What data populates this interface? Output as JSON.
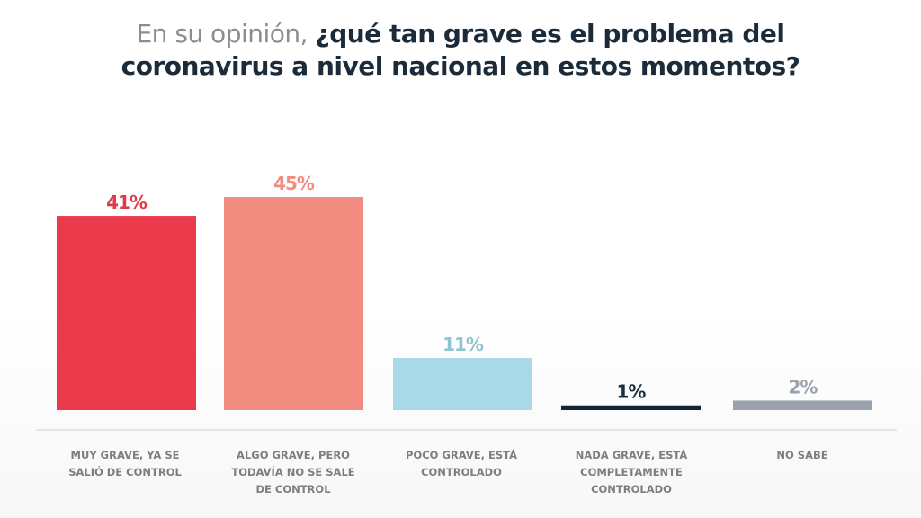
{
  "chart_data": {
    "type": "bar",
    "title": {
      "prefix": "En su opinión,",
      "emphasis_line1": "¿qué tan grave es el problema del",
      "emphasis_line2": "coronavirus a nivel nacional en estos momentos?"
    },
    "xlabel": "",
    "ylabel": "",
    "ylim": [
      0,
      45
    ],
    "grid": false,
    "legend": "none",
    "categories": [
      [
        "MUY GRAVE, YA SE",
        "SALIÓ DE CONTROL"
      ],
      [
        "ALGO GRAVE, PERO",
        "TODAVÍA NO SE SALE",
        "DE CONTROL"
      ],
      [
        "POCO GRAVE, ESTÁ",
        "CONTROLADO"
      ],
      [
        "NADA GRAVE, ESTÁ",
        "COMPLETAMENTE",
        "CONTROLADO"
      ],
      [
        "NO SABE"
      ]
    ],
    "values": [
      41,
      45,
      11,
      1,
      2
    ],
    "value_labels": [
      "41%",
      "45%",
      "11%",
      "1%",
      "2%"
    ],
    "colors": [
      "#ea3a4c",
      "#f28c80",
      "#a9d9e6",
      "#0f2636",
      "#9aa3ad"
    ],
    "label_colors": [
      "#e23a4c",
      "#f28c80",
      "#8cc5cf",
      "#1b2f3f",
      "#9aa3ad"
    ]
  }
}
